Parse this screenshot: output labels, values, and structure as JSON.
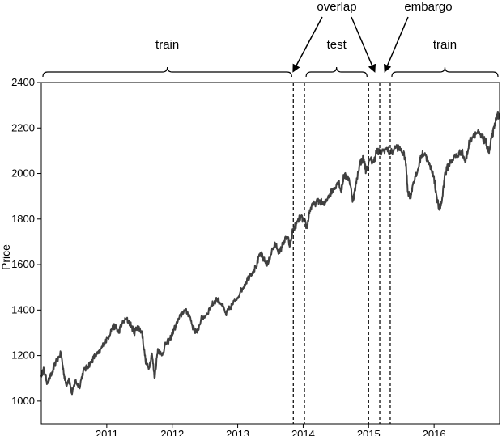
{
  "chart_data": {
    "type": "line",
    "title": "",
    "xlabel": "",
    "ylabel": "Price",
    "xlim": [
      2010.0,
      2017.0
    ],
    "ylim": [
      900,
      2400
    ],
    "yticks": [
      1000,
      1200,
      1400,
      1600,
      1800,
      2000,
      2200,
      2400
    ],
    "xticks": [
      {
        "value": 2011.0,
        "label": "2011"
      },
      {
        "value": 2012.0,
        "label": "2012"
      },
      {
        "value": 2013.0,
        "label": "2013"
      },
      {
        "value": 2014.0,
        "label": "2014"
      },
      {
        "value": 2015.0,
        "label": "2015"
      },
      {
        "value": 2016.0,
        "label": "2016"
      }
    ],
    "grid": false,
    "series": [
      {
        "color": "#404040",
        "points": [
          [
            2010.0,
            1115
          ],
          [
            2010.04,
            1140
          ],
          [
            2010.09,
            1080
          ],
          [
            2010.16,
            1120
          ],
          [
            2010.22,
            1170
          ],
          [
            2010.3,
            1210
          ],
          [
            2010.34,
            1130
          ],
          [
            2010.38,
            1070
          ],
          [
            2010.42,
            1100
          ],
          [
            2010.47,
            1030
          ],
          [
            2010.52,
            1090
          ],
          [
            2010.58,
            1060
          ],
          [
            2010.64,
            1130
          ],
          [
            2010.7,
            1150
          ],
          [
            2010.76,
            1170
          ],
          [
            2010.82,
            1200
          ],
          [
            2010.88,
            1210
          ],
          [
            2010.95,
            1250
          ],
          [
            2011.02,
            1280
          ],
          [
            2011.08,
            1320
          ],
          [
            2011.13,
            1330
          ],
          [
            2011.18,
            1300
          ],
          [
            2011.23,
            1340
          ],
          [
            2011.3,
            1360
          ],
          [
            2011.36,
            1340
          ],
          [
            2011.42,
            1300
          ],
          [
            2011.47,
            1330
          ],
          [
            2011.54,
            1300
          ],
          [
            2011.59,
            1180
          ],
          [
            2011.64,
            1140
          ],
          [
            2011.69,
            1210
          ],
          [
            2011.73,
            1100
          ],
          [
            2011.78,
            1230
          ],
          [
            2011.84,
            1200
          ],
          [
            2011.9,
            1250
          ],
          [
            2011.96,
            1270
          ],
          [
            2012.02,
            1310
          ],
          [
            2012.1,
            1360
          ],
          [
            2012.18,
            1400
          ],
          [
            2012.26,
            1380
          ],
          [
            2012.32,
            1320
          ],
          [
            2012.38,
            1300
          ],
          [
            2012.44,
            1360
          ],
          [
            2012.52,
            1380
          ],
          [
            2012.6,
            1420
          ],
          [
            2012.68,
            1450
          ],
          [
            2012.75,
            1430
          ],
          [
            2012.82,
            1380
          ],
          [
            2012.88,
            1410
          ],
          [
            2012.96,
            1440
          ],
          [
            2013.04,
            1480
          ],
          [
            2013.12,
            1520
          ],
          [
            2013.2,
            1560
          ],
          [
            2013.28,
            1590
          ],
          [
            2013.35,
            1650
          ],
          [
            2013.4,
            1620
          ],
          [
            2013.46,
            1600
          ],
          [
            2013.52,
            1660
          ],
          [
            2013.58,
            1690
          ],
          [
            2013.64,
            1650
          ],
          [
            2013.7,
            1700
          ],
          [
            2013.76,
            1720
          ],
          [
            2013.8,
            1680
          ],
          [
            2013.84,
            1750
          ],
          [
            2013.9,
            1780
          ],
          [
            2013.96,
            1810
          ],
          [
            2014.02,
            1790
          ],
          [
            2014.06,
            1760
          ],
          [
            2014.1,
            1840
          ],
          [
            2014.18,
            1870
          ],
          [
            2014.26,
            1880
          ],
          [
            2014.32,
            1860
          ],
          [
            2014.38,
            1900
          ],
          [
            2014.46,
            1930
          ],
          [
            2014.54,
            1970
          ],
          [
            2014.58,
            1920
          ],
          [
            2014.62,
            1990
          ],
          [
            2014.7,
            1980
          ],
          [
            2014.76,
            1880
          ],
          [
            2014.8,
            1940
          ],
          [
            2014.86,
            2040
          ],
          [
            2014.92,
            2070
          ],
          [
            2014.96,
            2010
          ],
          [
            2015.02,
            2060
          ],
          [
            2015.08,
            2050
          ],
          [
            2015.12,
            2100
          ],
          [
            2015.18,
            2090
          ],
          [
            2015.26,
            2110
          ],
          [
            2015.34,
            2090
          ],
          [
            2015.42,
            2120
          ],
          [
            2015.5,
            2100
          ],
          [
            2015.56,
            2070
          ],
          [
            2015.6,
            1920
          ],
          [
            2015.64,
            1900
          ],
          [
            2015.68,
            1960
          ],
          [
            2015.74,
            2000
          ],
          [
            2015.8,
            2080
          ],
          [
            2015.86,
            2090
          ],
          [
            2015.92,
            2040
          ],
          [
            2015.98,
            2010
          ],
          [
            2016.04,
            1900
          ],
          [
            2016.08,
            1840
          ],
          [
            2016.12,
            1880
          ],
          [
            2016.16,
            1990
          ],
          [
            2016.22,
            2040
          ],
          [
            2016.3,
            2070
          ],
          [
            2016.36,
            2080
          ],
          [
            2016.42,
            2100
          ],
          [
            2016.48,
            2050
          ],
          [
            2016.54,
            2140
          ],
          [
            2016.6,
            2170
          ],
          [
            2016.66,
            2180
          ],
          [
            2016.72,
            2160
          ],
          [
            2016.76,
            2150
          ],
          [
            2016.8,
            2130
          ],
          [
            2016.84,
            2090
          ],
          [
            2016.88,
            2160
          ],
          [
            2016.92,
            2200
          ],
          [
            2016.96,
            2260
          ],
          [
            2017.0,
            2250
          ]
        ]
      }
    ],
    "vlines": [
      2013.85,
      2014.02,
      2015.0,
      2015.17,
      2015.33
    ],
    "annotations": [
      {
        "label": "train",
        "type": "brace",
        "x0": 2010.0,
        "x1": 2013.85
      },
      {
        "label": "test",
        "type": "brace",
        "x0": 2014.02,
        "x1": 2015.0
      },
      {
        "label": "train",
        "type": "brace",
        "x0": 2015.33,
        "x1": 2017.0
      },
      {
        "label": "overlap",
        "type": "arrows",
        "targets": [
          2013.85,
          2015.09
        ]
      },
      {
        "label": "embargo",
        "type": "arrows",
        "targets": [
          2015.25
        ]
      }
    ]
  }
}
